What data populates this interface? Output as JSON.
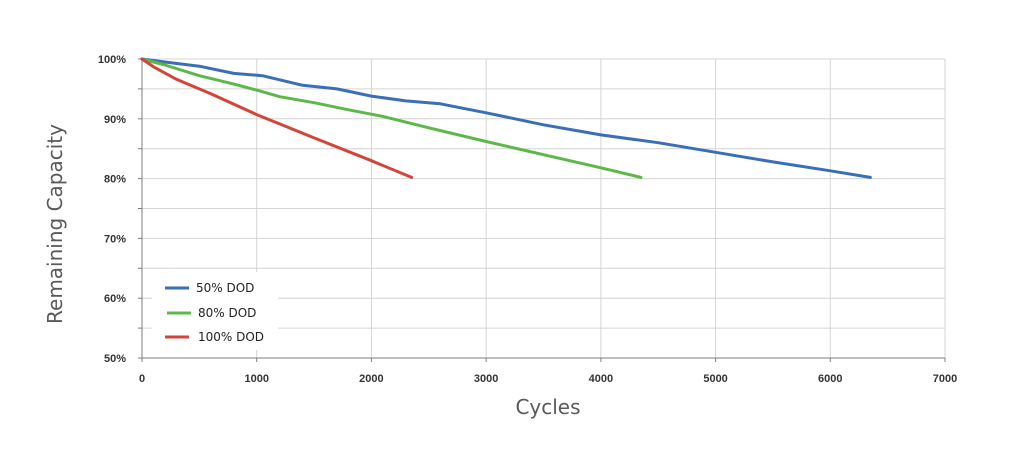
{
  "chart_data": {
    "type": "line",
    "xlabel": "Cycles",
    "ylabel": "Remaining Capacity",
    "xlim": [
      0,
      7000
    ],
    "ylim": [
      50,
      100
    ],
    "x_ticks": [
      "0",
      "1000",
      "2000",
      "3000",
      "4000",
      "5000",
      "6000",
      "7000"
    ],
    "y_ticks": [
      "50%",
      "60%",
      "70%",
      "80%",
      "90%",
      "100%"
    ],
    "grid": true,
    "legend_position": "bottom-left",
    "series": [
      {
        "name": "50% DOD",
        "color": "#3a6fb7",
        "points": [
          [
            0,
            100
          ],
          [
            200,
            99.5
          ],
          [
            500,
            98.8
          ],
          [
            800,
            97.6
          ],
          [
            1050,
            97.2
          ],
          [
            1400,
            95.6
          ],
          [
            1700,
            95.0
          ],
          [
            2000,
            93.8
          ],
          [
            2300,
            93.0
          ],
          [
            2600,
            92.5
          ],
          [
            3000,
            91.0
          ],
          [
            3500,
            89.0
          ],
          [
            4000,
            87.3
          ],
          [
            4500,
            86.0
          ],
          [
            5000,
            84.4
          ],
          [
            5500,
            82.8
          ],
          [
            6000,
            81.3
          ],
          [
            6350,
            80.2
          ]
        ]
      },
      {
        "name": "80% DOD",
        "color": "#5cb848",
        "points": [
          [
            0,
            100
          ],
          [
            200,
            99
          ],
          [
            500,
            97.2
          ],
          [
            800,
            95.8
          ],
          [
            1000,
            94.8
          ],
          [
            1200,
            93.7
          ],
          [
            1500,
            92.7
          ],
          [
            1800,
            91.5
          ],
          [
            2100,
            90.4
          ],
          [
            2500,
            88.5
          ],
          [
            3000,
            86.2
          ],
          [
            3500,
            84.0
          ],
          [
            4000,
            81.8
          ],
          [
            4350,
            80.2
          ]
        ]
      },
      {
        "name": "100% DOD",
        "color": "#d1453b",
        "points": [
          [
            0,
            100
          ],
          [
            100,
            98.7
          ],
          [
            300,
            96.6
          ],
          [
            600,
            94.2
          ],
          [
            1000,
            90.7
          ],
          [
            1500,
            86.8
          ],
          [
            2000,
            83.0
          ],
          [
            2350,
            80.2
          ]
        ]
      }
    ]
  }
}
